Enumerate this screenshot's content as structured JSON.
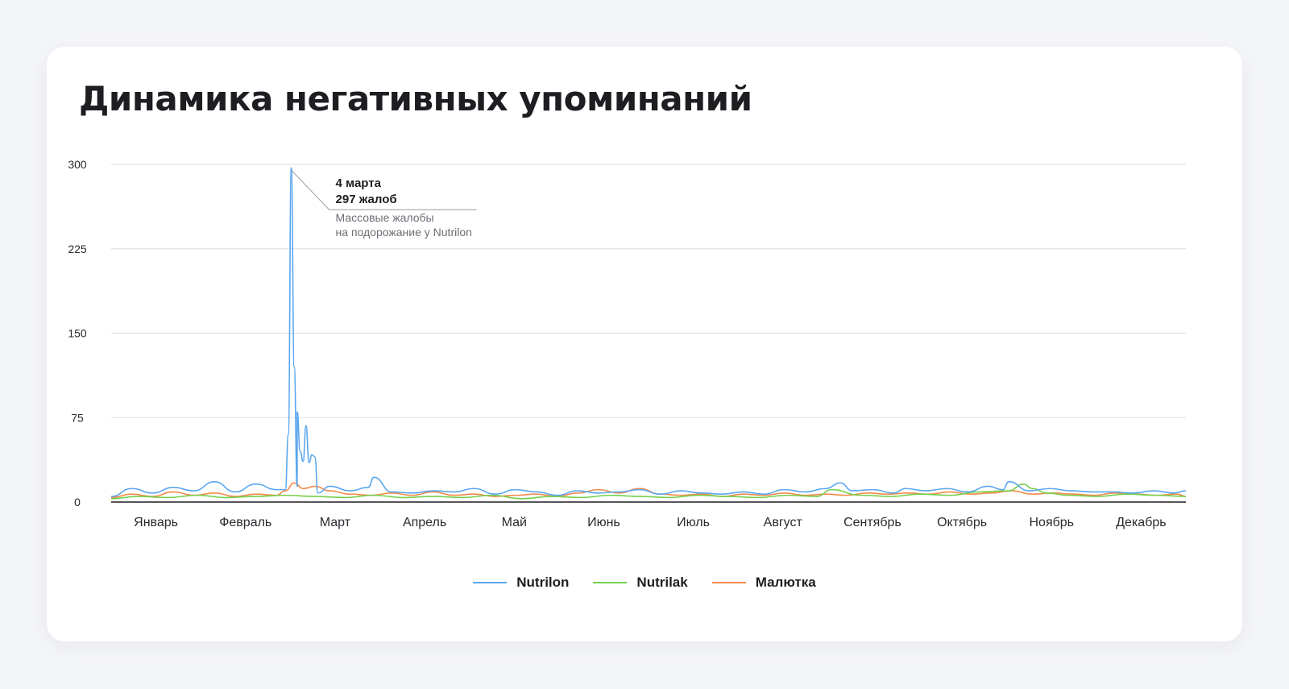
{
  "title": "Динамика негативных упоминаний",
  "chart_data": {
    "type": "line",
    "title": "Динамика негативных упоминаний",
    "xlabel": "",
    "ylabel": "",
    "ylim": [
      0,
      300
    ],
    "yticks": [
      "0",
      "75",
      "150",
      "225",
      "300"
    ],
    "months": [
      "Январь",
      "Февраль",
      "Март",
      "Апрель",
      "Май",
      "Июнь",
      "Июль",
      "Август",
      "Сентябрь",
      "Октябрь",
      "Ноябрь",
      "Декабрь"
    ],
    "grid": true,
    "legend_position": "bottom-center",
    "series": [
      {
        "name": "Nutrilon",
        "color": "#5aa6ee",
        "values": [
          [
            1,
            5
          ],
          [
            8,
            12
          ],
          [
            15,
            8
          ],
          [
            22,
            13
          ],
          [
            29,
            10
          ],
          [
            36,
            18
          ],
          [
            43,
            9
          ],
          [
            50,
            16
          ],
          [
            57,
            11
          ],
          [
            64,
            14
          ],
          [
            60,
            11
          ],
          [
            61,
            60
          ],
          [
            62,
            297
          ],
          [
            63,
            120
          ],
          [
            64,
            80
          ],
          [
            65,
            45
          ],
          [
            66,
            36
          ],
          [
            67,
            68
          ],
          [
            68,
            35
          ],
          [
            69,
            42
          ],
          [
            70,
            40
          ],
          [
            71,
            8
          ],
          [
            75,
            14
          ],
          [
            82,
            10
          ],
          [
            88,
            13
          ],
          [
            90,
            22
          ],
          [
            96,
            9
          ],
          [
            103,
            8
          ],
          [
            110,
            10
          ],
          [
            117,
            9
          ],
          [
            124,
            12
          ],
          [
            131,
            7
          ],
          [
            138,
            11
          ],
          [
            145,
            9
          ],
          [
            152,
            6
          ],
          [
            159,
            10
          ],
          [
            166,
            8
          ],
          [
            173,
            9
          ],
          [
            180,
            11
          ],
          [
            187,
            7
          ],
          [
            194,
            10
          ],
          [
            201,
            8
          ],
          [
            208,
            7
          ],
          [
            215,
            9
          ],
          [
            222,
            7
          ],
          [
            229,
            11
          ],
          [
            236,
            9
          ],
          [
            243,
            12
          ],
          [
            248,
            17
          ],
          [
            252,
            10
          ],
          [
            259,
            11
          ],
          [
            266,
            8
          ],
          [
            270,
            12
          ],
          [
            277,
            10
          ],
          [
            284,
            12
          ],
          [
            291,
            9
          ],
          [
            298,
            14
          ],
          [
            303,
            11
          ],
          [
            305,
            18
          ],
          [
            312,
            10
          ],
          [
            319,
            12
          ],
          [
            326,
            10
          ],
          [
            333,
            9
          ],
          [
            340,
            9
          ],
          [
            347,
            8
          ],
          [
            354,
            10
          ],
          [
            361,
            8
          ],
          [
            365,
            10
          ]
        ]
      },
      {
        "name": "Nutrilak",
        "color": "#73d04a",
        "values": [
          [
            1,
            3
          ],
          [
            10,
            5
          ],
          [
            20,
            4
          ],
          [
            30,
            6
          ],
          [
            40,
            4
          ],
          [
            50,
            5
          ],
          [
            60,
            6
          ],
          [
            70,
            5
          ],
          [
            80,
            4
          ],
          [
            90,
            6
          ],
          [
            100,
            4
          ],
          [
            110,
            5
          ],
          [
            120,
            4
          ],
          [
            130,
            6
          ],
          [
            140,
            3
          ],
          [
            150,
            5
          ],
          [
            160,
            4
          ],
          [
            170,
            6
          ],
          [
            180,
            5
          ],
          [
            190,
            4
          ],
          [
            200,
            6
          ],
          [
            210,
            5
          ],
          [
            220,
            4
          ],
          [
            230,
            6
          ],
          [
            240,
            5
          ],
          [
            245,
            11
          ],
          [
            255,
            6
          ],
          [
            265,
            5
          ],
          [
            275,
            7
          ],
          [
            285,
            6
          ],
          [
            295,
            9
          ],
          [
            305,
            10
          ],
          [
            310,
            16
          ],
          [
            313,
            12
          ],
          [
            318,
            8
          ],
          [
            325,
            6
          ],
          [
            335,
            5
          ],
          [
            345,
            7
          ],
          [
            355,
            6
          ],
          [
            365,
            5
          ]
        ]
      },
      {
        "name": "Малютка",
        "color": "#f28a4a",
        "values": [
          [
            1,
            4
          ],
          [
            8,
            7
          ],
          [
            15,
            5
          ],
          [
            22,
            9
          ],
          [
            29,
            6
          ],
          [
            36,
            8
          ],
          [
            43,
            5
          ],
          [
            50,
            7
          ],
          [
            57,
            6
          ],
          [
            60,
            10
          ],
          [
            63,
            17
          ],
          [
            66,
            12
          ],
          [
            70,
            14
          ],
          [
            75,
            10
          ],
          [
            82,
            7
          ],
          [
            89,
            6
          ],
          [
            96,
            8
          ],
          [
            103,
            6
          ],
          [
            110,
            9
          ],
          [
            117,
            6
          ],
          [
            124,
            7
          ],
          [
            131,
            5
          ],
          [
            138,
            6
          ],
          [
            145,
            7
          ],
          [
            152,
            5
          ],
          [
            159,
            8
          ],
          [
            166,
            11
          ],
          [
            173,
            8
          ],
          [
            180,
            12
          ],
          [
            187,
            7
          ],
          [
            194,
            6
          ],
          [
            201,
            7
          ],
          [
            208,
            5
          ],
          [
            215,
            7
          ],
          [
            222,
            6
          ],
          [
            229,
            8
          ],
          [
            236,
            6
          ],
          [
            243,
            7
          ],
          [
            250,
            6
          ],
          [
            257,
            8
          ],
          [
            264,
            7
          ],
          [
            271,
            8
          ],
          [
            278,
            7
          ],
          [
            285,
            9
          ],
          [
            292,
            7
          ],
          [
            299,
            8
          ],
          [
            306,
            10
          ],
          [
            313,
            7
          ],
          [
            320,
            8
          ],
          [
            327,
            7
          ],
          [
            334,
            6
          ],
          [
            341,
            8
          ],
          [
            348,
            7
          ],
          [
            355,
            6
          ],
          [
            362,
            7
          ],
          [
            365,
            5
          ]
        ]
      }
    ],
    "annotation": {
      "day": 62,
      "value": 297,
      "date": "4 марта",
      "count": "297 жалоб",
      "note_line1": "Массовые жалобы",
      "note_line2": "на подорожание у Nutrilon"
    }
  }
}
